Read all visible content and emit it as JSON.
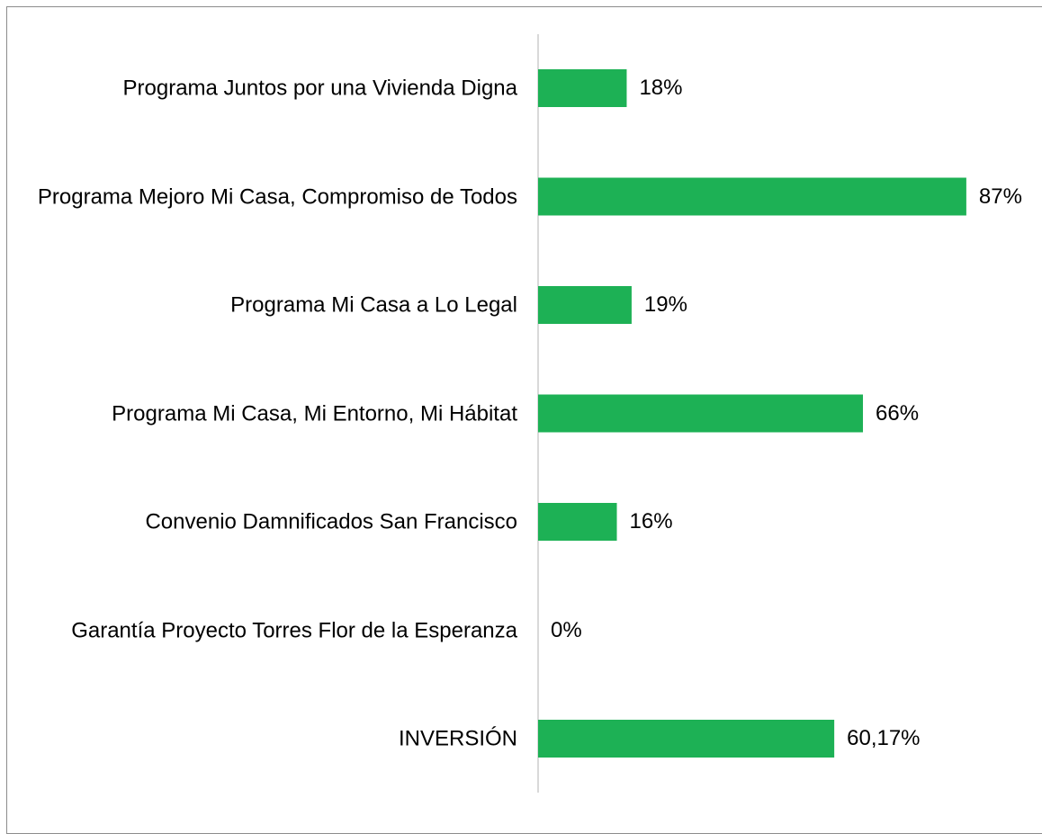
{
  "chart_data": {
    "type": "bar",
    "orientation": "horizontal",
    "categories": [
      "Programa Juntos por una Vivienda Digna",
      "Programa Mejoro Mi Casa, Compromiso de Todos",
      "Programa Mi Casa a Lo Legal",
      "Programa Mi Casa, Mi Entorno, Mi Hábitat",
      "Convenio Damnificados San Francisco",
      "Garantía Proyecto Torres Flor de la Esperanza",
      "INVERSIÓN"
    ],
    "values": [
      18,
      87,
      19,
      66,
      16,
      0,
      60.17
    ],
    "value_labels": [
      "18%",
      "87%",
      "19%",
      "66%",
      "16%",
      "0%",
      "60,17%"
    ],
    "color": "#1db155"
  }
}
